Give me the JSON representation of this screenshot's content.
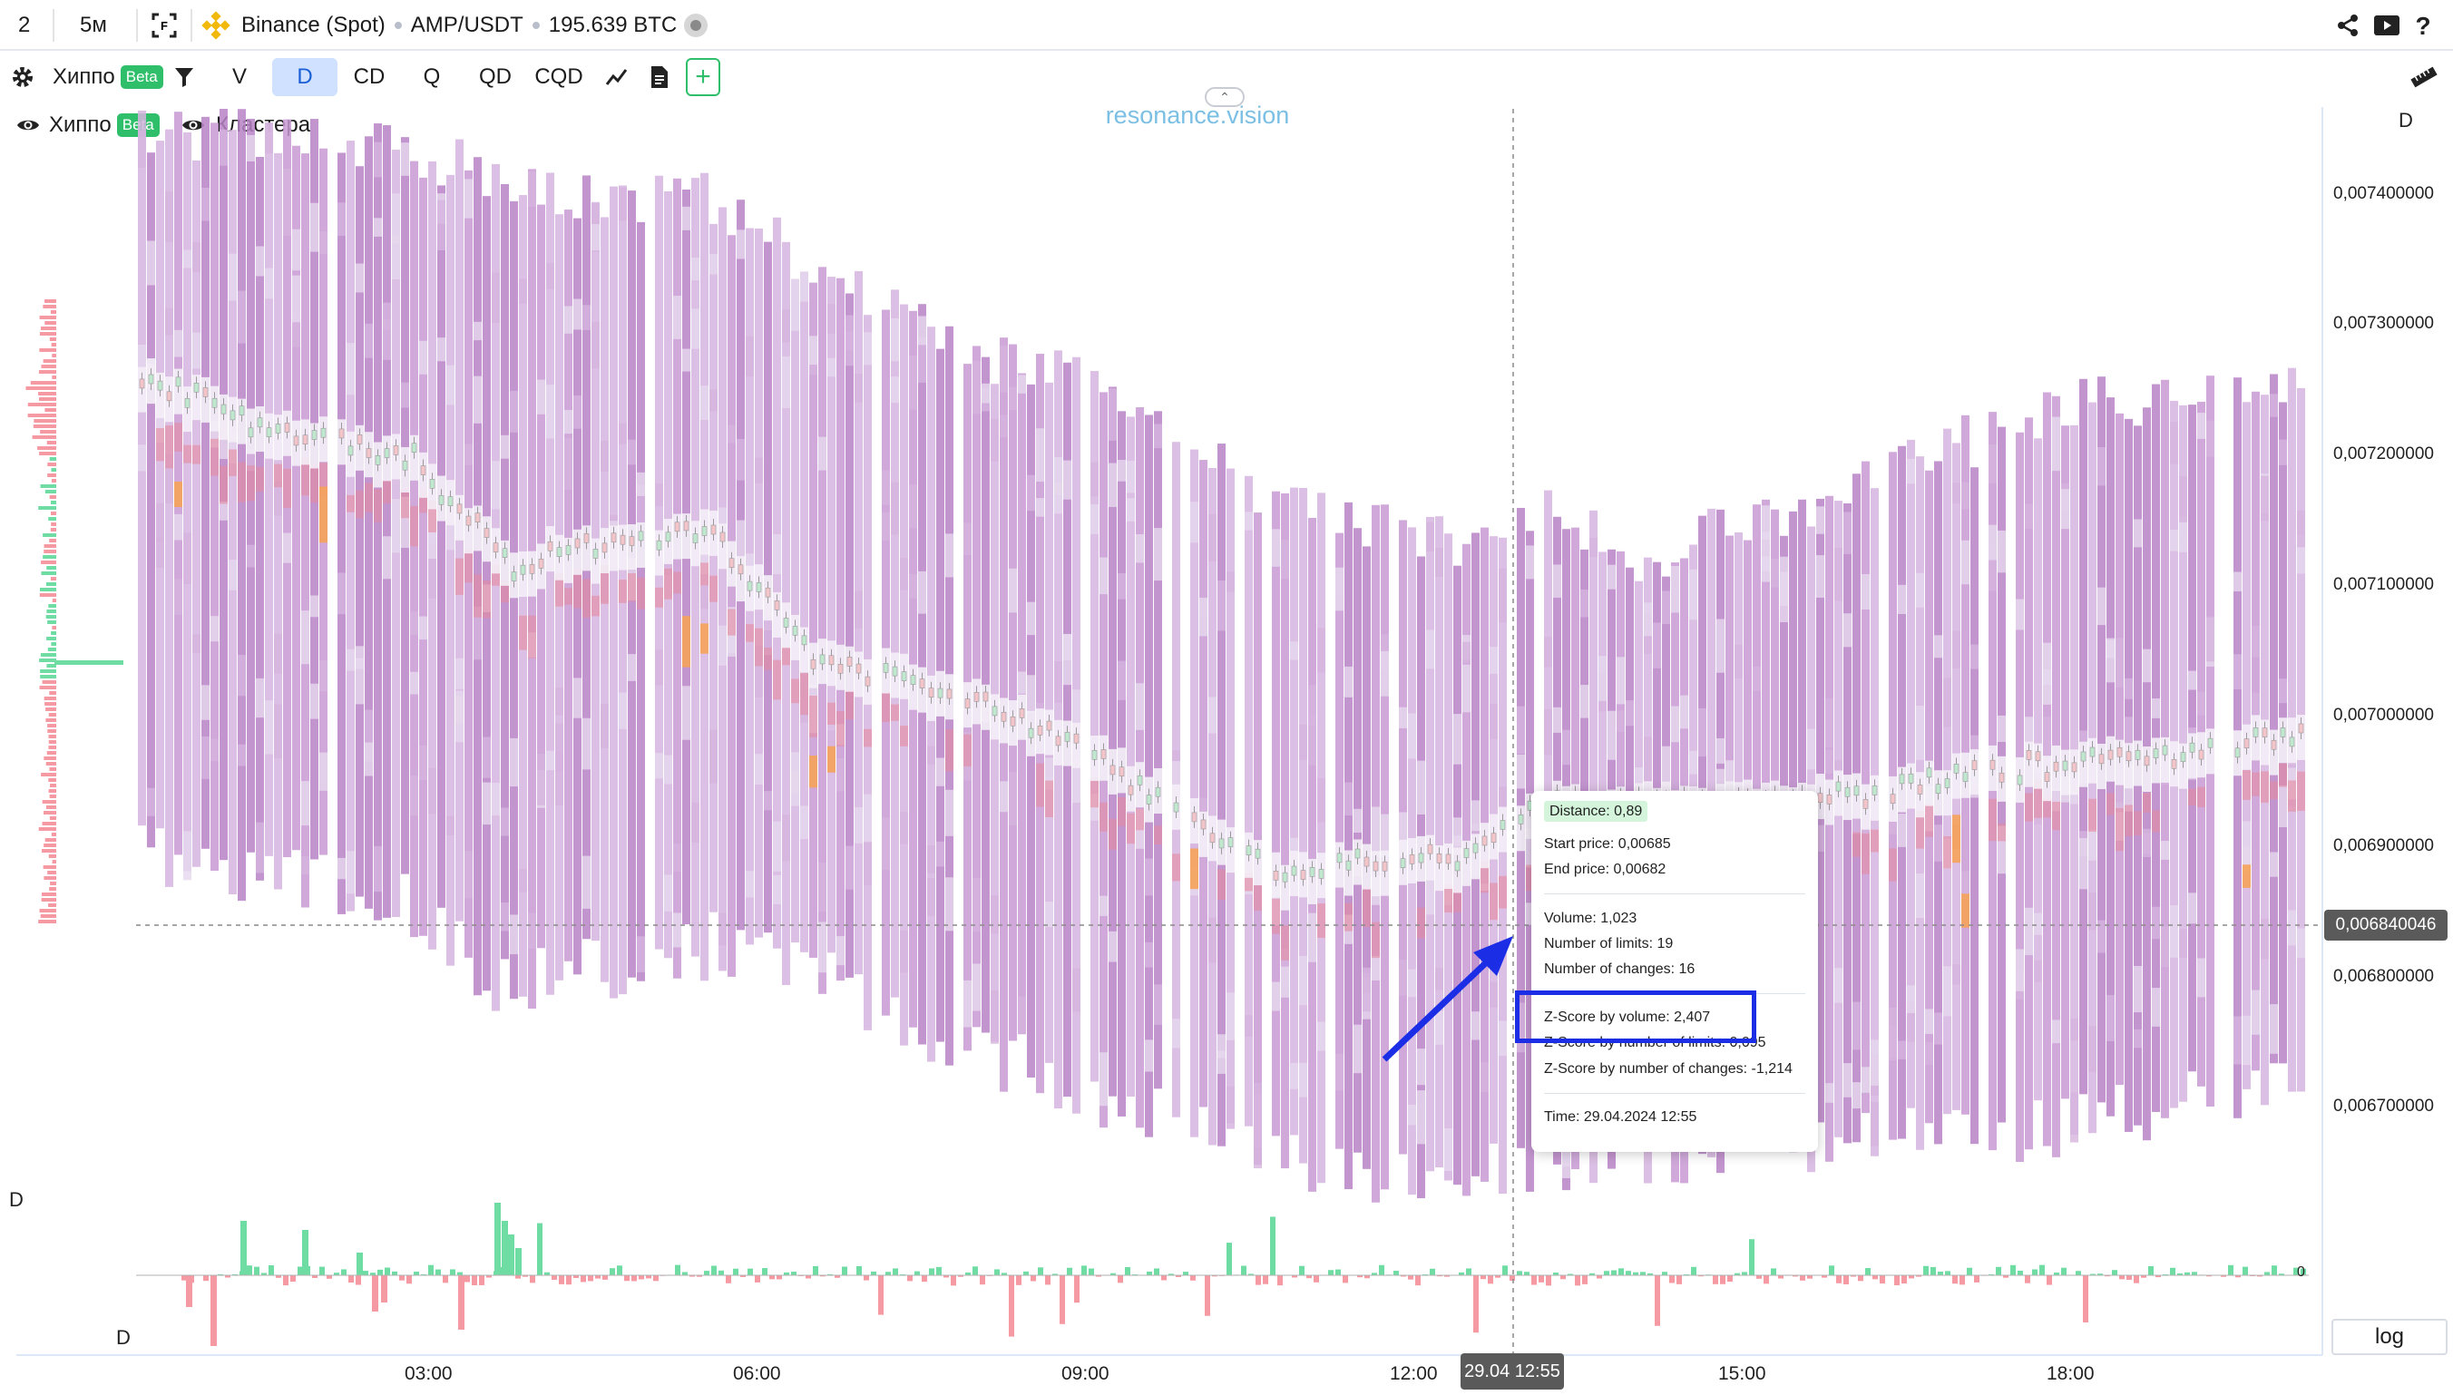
{
  "topbar": {
    "layout_count": "2",
    "interval": "5м",
    "exchange": "Binance (Spot)",
    "pair": "AMP/USDT",
    "volume": "195.639 BTC"
  },
  "toolbar": {
    "indicator_name": "Хиппо",
    "beta_badge": "Beta",
    "modes": [
      "V",
      "D",
      "CD",
      "Q",
      "QD",
      "CQD"
    ],
    "active_mode": "D",
    "add_label": "+"
  },
  "legend": {
    "hippo": "Хиппо",
    "beta_badge": "Beta",
    "clusters": "Кластера"
  },
  "watermark": "resonance.vision",
  "price_axis": {
    "label": "D",
    "ticks": [
      "0,007400000",
      "0,007300000",
      "0,007200000",
      "0,007100000",
      "0,007000000",
      "0,006900000",
      "0,006800000",
      "0,006700000"
    ],
    "crosshair_price": "0,006840046"
  },
  "time_axis": {
    "ticks": [
      "03:00",
      "06:00",
      "09:00",
      "12:00",
      "15:00",
      "18:00"
    ],
    "crosshair_time": "29.04 12:55"
  },
  "lower_panel": {
    "label_top": "D",
    "label_bottom": "D",
    "zero_label": "0"
  },
  "log_button": "log",
  "tooltip": {
    "distance": "Distance: 0,89",
    "start_price": "Start price: 0,00685",
    "end_price": "End price: 0,00682",
    "volume": "Volume: 1,023",
    "limits": "Number of limits: 19",
    "changes": "Number of changes: 16",
    "z_volume": "Z-Score by volume: 2,407",
    "z_limits": "Z-Score by number of limits: 0,095",
    "z_changes": "Z-Score by number of changes: -1,214",
    "time": "Time: 29.04.2024 12:55"
  },
  "colors": {
    "heatmap_purple": "#b983c7",
    "heatmap_light": "#e6d8ee",
    "buy_green": "#6fdca4",
    "sell_red": "#f59aa3",
    "accent_blue": "#1b2ee6",
    "active_tab": "#cfe1ff",
    "watermark": "#7bbfe4"
  }
}
